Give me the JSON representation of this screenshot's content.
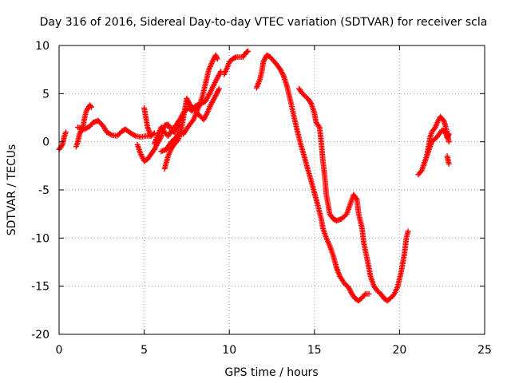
{
  "chart_data": {
    "type": "scatter",
    "title": "Day 316 of 2016, Sidereal Day-to-day VTEC variation (SDTVAR) for receiver scla",
    "xlabel": "GPS time / hours",
    "ylabel": "SDTVAR / TECUs",
    "xlim": [
      0,
      25
    ],
    "ylim": [
      -20,
      10
    ],
    "xticks": [
      "0",
      "5",
      "10",
      "15",
      "20",
      "25"
    ],
    "yticks": [
      "10",
      "5",
      "0",
      "-5",
      "-10",
      "-15",
      "-20"
    ],
    "grid": true,
    "marker": "plus",
    "color": "#ff0000",
    "series": [
      {
        "segments": [
          [
            [
              0.0,
              -0.8
            ],
            [
              0.2,
              -0.3
            ],
            [
              0.3,
              0.5
            ],
            [
              0.4,
              1.0
            ]
          ],
          [
            [
              1.0,
              -0.5
            ],
            [
              1.1,
              0.0
            ],
            [
              1.2,
              0.8
            ],
            [
              1.4,
              1.5
            ],
            [
              1.5,
              2.5
            ],
            [
              1.6,
              3.2
            ],
            [
              1.8,
              3.8
            ],
            [
              1.9,
              3.6
            ]
          ],
          [
            [
              1.1,
              1.5
            ],
            [
              1.5,
              1.3
            ],
            [
              1.8,
              1.6
            ],
            [
              2.0,
              2.0
            ],
            [
              2.3,
              2.2
            ],
            [
              2.6,
              1.6
            ],
            [
              2.8,
              1.0
            ],
            [
              3.1,
              0.7
            ],
            [
              3.4,
              0.6
            ],
            [
              3.7,
              1.1
            ],
            [
              3.9,
              1.3
            ],
            [
              4.2,
              0.9
            ],
            [
              4.5,
              0.6
            ],
            [
              4.8,
              0.5
            ],
            [
              5.1,
              0.6
            ],
            [
              5.4,
              0.6
            ]
          ],
          [
            [
              4.6,
              -0.3
            ],
            [
              4.8,
              -1.3
            ],
            [
              5.0,
              -2.0
            ],
            [
              5.2,
              -1.8
            ],
            [
              5.4,
              -1.3
            ],
            [
              5.6,
              -0.8
            ],
            [
              5.8,
              -0.1
            ],
            [
              6.0,
              0.5
            ],
            [
              6.1,
              1.2
            ],
            [
              6.2,
              1.7
            ],
            [
              6.4,
              1.8
            ],
            [
              6.5,
              1.4
            ],
            [
              6.8,
              1.5
            ],
            [
              7.0,
              2.1
            ],
            [
              7.1,
              2.3
            ],
            [
              7.3,
              3.0
            ],
            [
              7.6,
              3.5
            ],
            [
              7.8,
              3.2
            ],
            [
              8.0,
              3.7
            ],
            [
              8.3,
              3.9
            ],
            [
              8.6,
              4.2
            ],
            [
              8.9,
              5.2
            ],
            [
              9.2,
              6.3
            ],
            [
              9.5,
              7.3
            ]
          ],
          [
            [
              5.0,
              3.5
            ],
            [
              5.2,
              1.5
            ],
            [
              5.4,
              0.6
            ],
            [
              5.6,
              0.9
            ]
          ],
          [
            [
              5.6,
              -0.2
            ],
            [
              5.8,
              0.7
            ],
            [
              6.0,
              1.5
            ],
            [
              6.2,
              1.0
            ],
            [
              6.4,
              0.6
            ],
            [
              6.6,
              1.1
            ],
            [
              6.8,
              1.0
            ],
            [
              7.0,
              1.7
            ],
            [
              7.1,
              1.8
            ]
          ],
          [
            [
              6.2,
              -2.8
            ],
            [
              6.4,
              -1.5
            ],
            [
              6.6,
              -0.7
            ],
            [
              6.8,
              -0.2
            ],
            [
              7.0,
              0.2
            ],
            [
              7.2,
              1.5
            ],
            [
              7.4,
              3.5
            ],
            [
              7.5,
              4.5
            ],
            [
              7.7,
              3.8
            ],
            [
              7.9,
              3.5
            ],
            [
              8.2,
              2.8
            ],
            [
              8.5,
              2.3
            ],
            [
              8.7,
              3.0
            ],
            [
              8.9,
              3.8
            ],
            [
              9.2,
              4.8
            ],
            [
              9.4,
              5.5
            ]
          ],
          [
            [
              6.0,
              -1.0
            ],
            [
              6.3,
              -0.8
            ],
            [
              6.6,
              0.0
            ],
            [
              6.8,
              0.3
            ],
            [
              7.0,
              0.8
            ],
            [
              7.3,
              0.8
            ],
            [
              7.6,
              1.6
            ],
            [
              7.9,
              2.3
            ],
            [
              8.2,
              3.6
            ],
            [
              8.4,
              4.6
            ],
            [
              8.6,
              6.0
            ],
            [
              8.8,
              7.5
            ],
            [
              9.0,
              8.3
            ],
            [
              9.2,
              9.0
            ],
            [
              9.3,
              8.6
            ]
          ],
          [
            [
              9.7,
              7.0
            ],
            [
              9.9,
              7.8
            ],
            [
              10.0,
              8.3
            ],
            [
              10.2,
              8.6
            ],
            [
              10.4,
              8.8
            ],
            [
              10.6,
              8.8
            ],
            [
              10.8,
              8.8
            ],
            [
              11.0,
              9.3
            ],
            [
              11.1,
              9.4
            ]
          ],
          [
            [
              11.6,
              5.6
            ],
            [
              11.8,
              6.5
            ],
            [
              11.9,
              7.2
            ],
            [
              12.0,
              8.3
            ],
            [
              12.2,
              9.0
            ],
            [
              12.4,
              8.8
            ],
            [
              12.6,
              8.4
            ],
            [
              12.8,
              8.0
            ],
            [
              13.0,
              7.5
            ],
            [
              13.2,
              6.8
            ],
            [
              13.4,
              5.7
            ],
            [
              13.6,
              4.2
            ],
            [
              13.8,
              2.6
            ],
            [
              14.0,
              1.1
            ],
            [
              14.2,
              -0.3
            ],
            [
              14.4,
              -1.5
            ],
            [
              14.6,
              -2.8
            ],
            [
              14.8,
              -4.0
            ],
            [
              15.0,
              -5.3
            ],
            [
              15.2,
              -6.6
            ],
            [
              15.4,
              -8.0
            ],
            [
              15.5,
              -9.0
            ],
            [
              15.7,
              -10.0
            ],
            [
              15.9,
              -10.8
            ],
            [
              16.1,
              -11.8
            ],
            [
              16.3,
              -13.1
            ],
            [
              16.5,
              -14.0
            ],
            [
              16.8,
              -14.8
            ],
            [
              17.0,
              -15.1
            ],
            [
              17.2,
              -15.8
            ],
            [
              17.4,
              -16.3
            ],
            [
              17.6,
              -16.5
            ],
            [
              17.8,
              -16.2
            ],
            [
              18.0,
              -15.8
            ],
            [
              18.2,
              -15.8
            ]
          ],
          [
            [
              14.1,
              5.5
            ],
            [
              14.3,
              5.0
            ],
            [
              14.6,
              4.5
            ],
            [
              14.8,
              4.0
            ],
            [
              15.0,
              3.0
            ],
            [
              15.1,
              2.0
            ],
            [
              15.3,
              1.5
            ],
            [
              15.4,
              0.0
            ],
            [
              15.5,
              -2.0
            ],
            [
              15.6,
              -3.5
            ],
            [
              15.7,
              -5.5
            ],
            [
              15.8,
              -6.5
            ],
            [
              15.9,
              -7.5
            ],
            [
              16.1,
              -8.0
            ],
            [
              16.3,
              -8.2
            ],
            [
              16.6,
              -8.0
            ],
            [
              16.9,
              -7.5
            ],
            [
              17.1,
              -6.5
            ],
            [
              17.3,
              -5.5
            ],
            [
              17.5,
              -6.0
            ],
            [
              17.6,
              -7.5
            ],
            [
              17.8,
              -9.0
            ],
            [
              17.9,
              -10.5
            ],
            [
              18.1,
              -12.2
            ],
            [
              18.3,
              -14.0
            ],
            [
              18.5,
              -15.0
            ],
            [
              18.7,
              -15.5
            ],
            [
              18.9,
              -15.8
            ],
            [
              19.1,
              -16.3
            ],
            [
              19.3,
              -16.5
            ],
            [
              19.5,
              -16.2
            ],
            [
              19.7,
              -15.8
            ],
            [
              19.9,
              -15.0
            ],
            [
              20.1,
              -13.5
            ],
            [
              20.3,
              -11.5
            ],
            [
              20.4,
              -10.0
            ],
            [
              20.5,
              -9.3
            ]
          ],
          [
            [
              21.1,
              -3.4
            ],
            [
              21.3,
              -3.0
            ],
            [
              21.5,
              -2.0
            ],
            [
              21.7,
              -1.0
            ],
            [
              21.9,
              0.0
            ],
            [
              22.2,
              0.5
            ],
            [
              22.5,
              1.2
            ],
            [
              22.7,
              1.0
            ],
            [
              22.8,
              0.4
            ],
            [
              22.9,
              0.8
            ]
          ],
          [
            [
              21.4,
              -2.5
            ],
            [
              21.6,
              -1.5
            ],
            [
              21.8,
              0.5
            ],
            [
              21.9,
              1.0
            ],
            [
              22.1,
              1.5
            ],
            [
              22.3,
              2.3
            ],
            [
              22.4,
              2.6
            ],
            [
              22.6,
              2.2
            ],
            [
              22.7,
              1.6
            ],
            [
              22.8,
              0.9
            ],
            [
              22.9,
              0.0
            ]
          ],
          [
            [
              22.8,
              -1.5
            ],
            [
              22.9,
              -2.3
            ]
          ]
        ]
      }
    ]
  }
}
